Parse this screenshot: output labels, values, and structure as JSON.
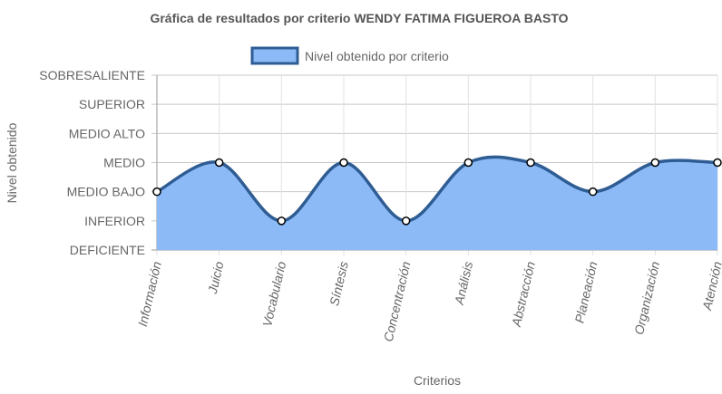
{
  "chart_data": {
    "type": "area",
    "title": "Gráfica de resultados por criterio WENDY FATIMA FIGUEROA BASTO",
    "xlabel": "Criterios",
    "ylabel": "Nivel obtenido",
    "categories": [
      "Información",
      "Juicio",
      "Vocabulario",
      "Síntesis",
      "Concentración",
      "Análisis",
      "Abstracción",
      "Planeación",
      "Organización",
      "Atención"
    ],
    "y_levels": [
      "DEFICIENTE",
      "INFERIOR",
      "MEDIO BAJO",
      "MEDIO",
      "MEDIO ALTO",
      "SUPERIOR",
      "SOBRESALIENTE"
    ],
    "ylim": [
      0,
      6
    ],
    "legend_position": "top",
    "grid": true,
    "series": [
      {
        "name": "Nivel obtenido por criterio",
        "values": [
          2,
          3,
          1,
          3,
          1,
          3,
          3,
          2,
          3,
          3
        ],
        "fill_color": "#8bbaf7",
        "line_color": "#2f5d93"
      }
    ]
  }
}
